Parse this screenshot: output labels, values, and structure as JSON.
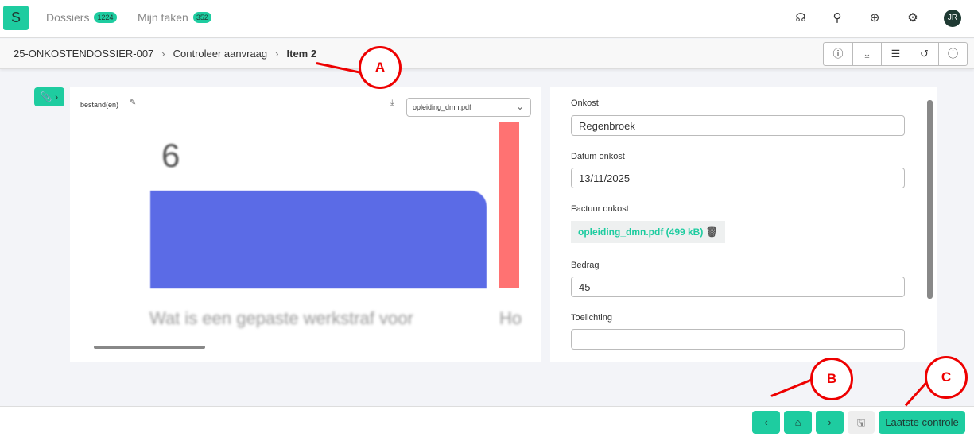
{
  "header": {
    "logo": "S",
    "nav": [
      {
        "label": "Dossiers",
        "count": "1224"
      },
      {
        "label": "Mijn taken",
        "count": "352"
      }
    ],
    "icons": [
      "headset-icon",
      "search-icon",
      "globe-icon",
      "gear-icon"
    ],
    "avatar": "JR"
  },
  "breadcrumb": [
    "25-ONKOSTENDOSSIER-007",
    "Controleer aanvraag",
    "Item 2"
  ],
  "toolbar_icons": [
    "info-circle-icon",
    "download-icon",
    "list-icon",
    "history-icon",
    "info-icon"
  ],
  "viewer": {
    "label": "bestand(en)",
    "selected_file": "opleiding_dmn.pdf",
    "doc_number": "6",
    "doc_text": "Wat is een gepaste werkstraf voor",
    "doc_text2": "Ho"
  },
  "form": {
    "fields": [
      {
        "label": "Onkost",
        "value": "Regenbroek"
      },
      {
        "label": "Datum onkost",
        "value": "13/11/2025"
      },
      {
        "label": "Factuur onkost",
        "file": "opleiding_dmn.pdf (499 kB)"
      },
      {
        "label": "Bedrag",
        "value": "45"
      },
      {
        "label": "Toelichting",
        "value": ""
      }
    ]
  },
  "footer": {
    "final_label": "Laatste controle"
  },
  "annotations": [
    "A",
    "B",
    "C"
  ],
  "colors": {
    "accent": "#1ecca0",
    "annotation": "#e00000"
  }
}
